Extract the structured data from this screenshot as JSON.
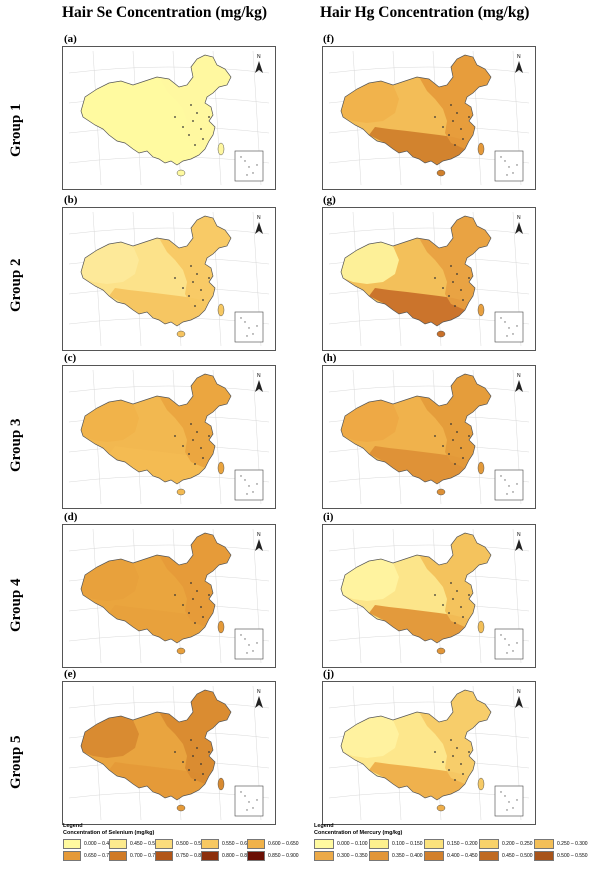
{
  "titles": {
    "left": "Hair Se Concentration (mg/kg)",
    "right": "Hair Hg Concentration (mg/kg)"
  },
  "groups": [
    "Group 1",
    "Group 2",
    "Group 3",
    "Group 4",
    "Group 5"
  ],
  "left_panels": [
    "(a)",
    "(b)",
    "(c)",
    "(d)",
    "(e)"
  ],
  "right_panels": [
    "(f)",
    "(g)",
    "(h)",
    "(i)",
    "(j)"
  ],
  "north_label": "N",
  "se_legend": {
    "heading": "Legend",
    "title": "Concentration of Selenium (mg/kg)",
    "items": [
      {
        "label": "0.000 – 0.450",
        "color": "#fffaa0"
      },
      {
        "label": "0.450 – 0.500",
        "color": "#fdeb8e"
      },
      {
        "label": "0.500 – 0.550",
        "color": "#fbdc7c"
      },
      {
        "label": "0.550 – 0.600",
        "color": "#f7c862"
      },
      {
        "label": "0.600 – 0.650",
        "color": "#f0b24a"
      },
      {
        "label": "0.650 – 0.700",
        "color": "#e59a38"
      },
      {
        "label": "0.700 – 0.750",
        "color": "#d07a26"
      },
      {
        "label": "0.750 – 0.800",
        "color": "#b25618"
      },
      {
        "label": "0.800 – 0.850",
        "color": "#8c2f0c"
      },
      {
        "label": "0.850 – 0.900",
        "color": "#6a0f04"
      }
    ]
  },
  "hg_legend": {
    "heading": "Legend",
    "title": "Concentration of Mercury (mg/kg)",
    "items": [
      {
        "label": "0.000 – 0.100",
        "color": "#fffaa0"
      },
      {
        "label": "0.100 – 0.150",
        "color": "#fdf08e"
      },
      {
        "label": "0.150 – 0.200",
        "color": "#fbe27c"
      },
      {
        "label": "0.200 – 0.250",
        "color": "#f8d26a"
      },
      {
        "label": "0.250 – 0.300",
        "color": "#f3bf58"
      },
      {
        "label": "0.300 – 0.350",
        "color": "#ecaa48"
      },
      {
        "label": "0.350 – 0.400",
        "color": "#e29638"
      },
      {
        "label": "0.400 – 0.450",
        "color": "#d2802c"
      },
      {
        "label": "0.450 – 0.500",
        "color": "#bf6a22"
      },
      {
        "label": "0.500 – 0.550",
        "color": "#a8541a"
      }
    ]
  },
  "maps": {
    "left": [
      {
        "base": "#fffaa0",
        "west": "#fffaa0",
        "east": "#fff7a0",
        "south": "#fffaa0"
      },
      {
        "base": "#fce28a",
        "west": "#fde99a",
        "east": "#f7c862",
        "south": "#f6c460"
      },
      {
        "base": "#f2b850",
        "west": "#f0b24a",
        "east": "#eaa43e",
        "south": "#f3ba52"
      },
      {
        "base": "#eaa53e",
        "west": "#e8a03c",
        "east": "#e59a38",
        "south": "#e8a03c"
      },
      {
        "base": "#e9a43f",
        "west": "#d88a30",
        "east": "#d88a30",
        "south": "#e59a38"
      }
    ],
    "right": [
      {
        "base": "#f3bd57",
        "west": "#f0b24c",
        "east": "#e5993a",
        "south": "#d0802c"
      },
      {
        "base": "#f3c05a",
        "west": "#fdf29c",
        "east": "#e8a040",
        "south": "#c8702a"
      },
      {
        "base": "#f0b24c",
        "west": "#eda945",
        "east": "#e39a3a",
        "south": "#dd9036"
      },
      {
        "base": "#fce58a",
        "west": "#fff3a0",
        "east": "#f3bf58",
        "south": "#e29638"
      },
      {
        "base": "#fde78c",
        "west": "#fff2a0",
        "east": "#f6ca66",
        "south": "#eeae4a"
      }
    ]
  }
}
